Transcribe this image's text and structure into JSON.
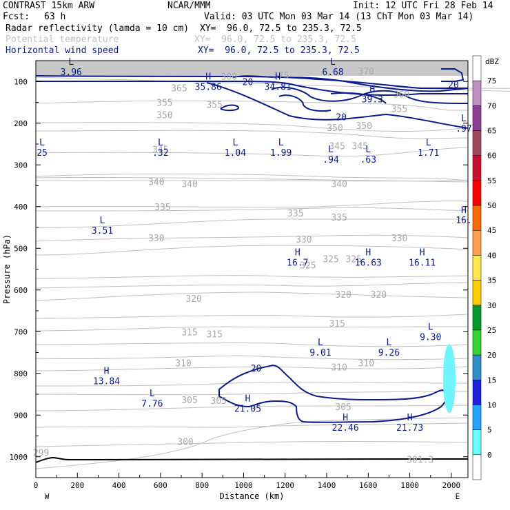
{
  "header": {
    "model": "CONTRAST 15km ARW",
    "center": "NCAR/MMM",
    "init": "Init: 12 UTC Fri 28 Feb 14",
    "fcst_label": "Fcst:",
    "fcst_value": "63 h",
    "valid": "Valid: 03 UTC Mon 03 Mar 14 (13 ChT Mon 03 Mar 14)",
    "field1": {
      "name": "Radar reflectivity (lamda = 10 cm)",
      "xy": "XY=  96.0, 72.5 to 235.3, 72.5",
      "color": "#000000"
    },
    "field2": {
      "name": "Potential temperature",
      "xy": "XY=  96.0, 72.5 to 235.3, 72.5",
      "color": "#c0c0c0"
    },
    "field3": {
      "name": "Horizontal wind speed",
      "xy": "XY=  96.0, 72.5 to 235.3, 72.5",
      "color": "#0a1a8c"
    }
  },
  "colorbar": {
    "unit": "dBZ",
    "levels": [
      "75",
      "70",
      "65",
      "60",
      "55",
      "50",
      "45",
      "40",
      "35",
      "30",
      "25",
      "20",
      "15",
      "10",
      "5",
      "0"
    ],
    "colors": [
      "#ffffff",
      "#c08fc4",
      "#8e3f98",
      "#a0485a",
      "#c8102e",
      "#ff0000",
      "#ff6a00",
      "#ff9e4a",
      "#ffe64a",
      "#ffcc00",
      "#009a2a",
      "#33d433",
      "#2e8ec8",
      "#2020e0",
      "#20a4ff",
      "#66ffff",
      "#ffffff"
    ]
  },
  "chart_data": {
    "type": "contour cross-section",
    "xlabel": "Distance (km)",
    "ylabel": "Pressure (hPa)",
    "xlim": [
      0,
      2080
    ],
    "ylim": [
      1050,
      50
    ],
    "x_ticks": [
      "0",
      "200",
      "400",
      "600",
      "800",
      "1000",
      "1200",
      "1400",
      "1600",
      "1800",
      "2000"
    ],
    "y_ticks": [
      "100",
      "200",
      "300",
      "400",
      "500",
      "600",
      "700",
      "800",
      "900",
      "1000"
    ],
    "x_end_labels": {
      "left": "W",
      "right": "E"
    },
    "theta_labels": [
      {
        "text": "355",
        "x": 620,
        "p": 150
      },
      {
        "text": "355",
        "x": 860,
        "p": 155
      },
      {
        "text": "350",
        "x": 620,
        "p": 180
      },
      {
        "text": "350",
        "x": 1440,
        "p": 210
      },
      {
        "text": "350",
        "x": 1580,
        "p": 205
      },
      {
        "text": "355",
        "x": 1750,
        "p": 165
      },
      {
        "text": "345",
        "x": 600,
        "p": 262
      },
      {
        "text": "345",
        "x": 1450,
        "p": 254
      },
      {
        "text": "345",
        "x": 1560,
        "p": 254
      },
      {
        "text": "340",
        "x": 580,
        "p": 340
      },
      {
        "text": "340",
        "x": 740,
        "p": 345
      },
      {
        "text": "340",
        "x": 1460,
        "p": 345
      },
      {
        "text": "335",
        "x": 610,
        "p": 400
      },
      {
        "text": "335",
        "x": 1250,
        "p": 415
      },
      {
        "text": "335",
        "x": 1460,
        "p": 425
      },
      {
        "text": "330",
        "x": 580,
        "p": 475
      },
      {
        "text": "330",
        "x": 1290,
        "p": 478
      },
      {
        "text": "330",
        "x": 1750,
        "p": 475
      },
      {
        "text": "325",
        "x": 1420,
        "p": 525
      },
      {
        "text": "325",
        "x": 1530,
        "p": 525
      },
      {
        "text": "325",
        "x": 1310,
        "p": 540
      },
      {
        "text": "320",
        "x": 760,
        "p": 620
      },
      {
        "text": "320",
        "x": 1480,
        "p": 610
      },
      {
        "text": "320",
        "x": 1650,
        "p": 610
      },
      {
        "text": "315",
        "x": 1450,
        "p": 680
      },
      {
        "text": "315",
        "x": 740,
        "p": 700
      },
      {
        "text": "315",
        "x": 860,
        "p": 705
      },
      {
        "text": "310",
        "x": 710,
        "p": 775
      },
      {
        "text": "310",
        "x": 1460,
        "p": 785
      },
      {
        "text": "310",
        "x": 1590,
        "p": 775
      },
      {
        "text": "305",
        "x": 740,
        "p": 863
      },
      {
        "text": "305",
        "x": 880,
        "p": 865
      },
      {
        "text": "305",
        "x": 1480,
        "p": 880
      },
      {
        "text": "300",
        "x": 720,
        "p": 963
      },
      {
        "text": "299",
        "x": 25,
        "p": 990
      },
      {
        "text": "301.3",
        "x": 1850,
        "p": 1006
      },
      {
        "text": "370",
        "x": 1590,
        "p": 75
      },
      {
        "text": "380",
        "x": 930,
        "p": 87
      },
      {
        "text": "365",
        "x": 690,
        "p": 115
      },
      {
        "text": "360",
        "x": 1760,
        "p": 130
      },
      {
        "text": "375",
        "x": 1180,
        "p": 85
      }
    ],
    "wind_extrema": [
      {
        "type": "L",
        "value": "3.96",
        "x": 170,
        "p": 65
      },
      {
        "type": "H",
        "value": "35.86",
        "x": 830,
        "p": 100
      },
      {
        "type": "H",
        "value": "34.81",
        "x": 1165,
        "p": 100
      },
      {
        "type": "L",
        "value": "6.68",
        "x": 1430,
        "p": 65
      },
      {
        "type": "H",
        "value": "39.3",
        "x": 1620,
        "p": 130
      },
      {
        "type": "L",
        "value": "25",
        "x": 30,
        "p": 258
      },
      {
        "type": "L",
        "value": ".32",
        "x": 600,
        "p": 258
      },
      {
        "type": "L",
        "value": "1.04",
        "x": 960,
        "p": 258
      },
      {
        "type": "L",
        "value": "1.99",
        "x": 1180,
        "p": 258
      },
      {
        "type": "L",
        "value": ".94",
        "x": 1420,
        "p": 275
      },
      {
        "type": "L",
        "value": ".63",
        "x": 1600,
        "p": 275
      },
      {
        "type": "L",
        "value": "1.71",
        "x": 1890,
        "p": 258
      },
      {
        "type": "L",
        "value": ".97",
        "x": 2060,
        "p": 200
      },
      {
        "type": "H",
        "value": "16.",
        "x": 2060,
        "p": 420
      },
      {
        "type": "L",
        "value": "3.51",
        "x": 320,
        "p": 445
      },
      {
        "type": "H",
        "value": "16.7",
        "x": 1260,
        "p": 522
      },
      {
        "type": "H",
        "value": "16.63",
        "x": 1600,
        "p": 522
      },
      {
        "type": "H",
        "value": "16.11",
        "x": 1860,
        "p": 522
      },
      {
        "type": "L",
        "value": "9.30",
        "x": 1900,
        "p": 700
      },
      {
        "type": "L",
        "value": "9.01",
        "x": 1370,
        "p": 738
      },
      {
        "type": "L",
        "value": "9.26",
        "x": 1700,
        "p": 738
      },
      {
        "type": "H",
        "value": "13.84",
        "x": 340,
        "p": 806
      },
      {
        "type": "L",
        "value": "7.76",
        "x": 560,
        "p": 860
      },
      {
        "type": "H",
        "value": "21.05",
        "x": 1020,
        "p": 872
      },
      {
        "type": "H",
        "value": "22.46",
        "x": 1490,
        "p": 918
      },
      {
        "type": "H",
        "value": "21.73",
        "x": 1800,
        "p": 918
      }
    ],
    "wind_contour_labels": [
      {
        "text": "20",
        "x": 1020,
        "p": 100
      },
      {
        "text": "20",
        "x": 1470,
        "p": 185
      },
      {
        "text": "20",
        "x": 2010,
        "p": 107
      },
      {
        "text": "20",
        "x": 1060,
        "p": 787
      }
    ],
    "reflectivity_cells": [
      {
        "x": 1990,
        "p_top": 730,
        "p_bottom": 895,
        "dbz": "5"
      }
    ]
  }
}
